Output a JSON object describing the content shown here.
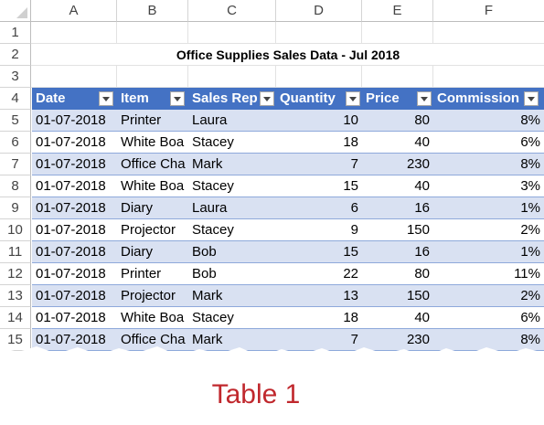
{
  "columns": [
    "A",
    "B",
    "C",
    "D",
    "E",
    "F"
  ],
  "rows": [
    "1",
    "2",
    "3",
    "4",
    "5",
    "6",
    "7",
    "8",
    "9",
    "10",
    "11",
    "12",
    "13",
    "14",
    "15"
  ],
  "title": "Office Supplies Sales Data - Jul 2018",
  "headers": [
    "Date",
    "Item",
    "Sales Rep",
    "Quantity",
    "Price",
    "Commission"
  ],
  "data": [
    [
      "01-07-2018",
      "Printer",
      "Laura",
      "10",
      "80",
      "8%"
    ],
    [
      "01-07-2018",
      "White Boa",
      "Stacey",
      "18",
      "40",
      "6%"
    ],
    [
      "01-07-2018",
      "Office Cha",
      "Mark",
      "7",
      "230",
      "8%"
    ],
    [
      "01-07-2018",
      "White Boa",
      "Stacey",
      "15",
      "40",
      "3%"
    ],
    [
      "01-07-2018",
      "Diary",
      "Laura",
      "6",
      "16",
      "1%"
    ],
    [
      "01-07-2018",
      "Projector",
      "Stacey",
      "9",
      "150",
      "2%"
    ],
    [
      "01-07-2018",
      "Diary",
      "Bob",
      "15",
      "16",
      "1%"
    ],
    [
      "01-07-2018",
      "Printer",
      "Bob",
      "22",
      "80",
      "11%"
    ],
    [
      "01-07-2018",
      "Projector",
      "Mark",
      "13",
      "150",
      "2%"
    ],
    [
      "01-07-2018",
      "White Boa",
      "Stacey",
      "18",
      "40",
      "6%"
    ],
    [
      "01-07-2018",
      "Office Cha",
      "Mark",
      "7",
      "230",
      "8%"
    ]
  ],
  "caption": "Table 1",
  "colors": {
    "header_fill": "#4472c4",
    "band_fill": "#d9e1f2",
    "caption": "#c0282d"
  }
}
